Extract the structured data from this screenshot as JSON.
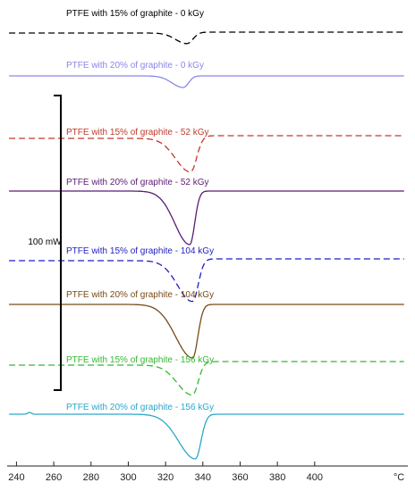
{
  "chart_data": {
    "type": "line",
    "xlabel": "",
    "x_unit": "°C",
    "xlim": [
      235,
      450
    ],
    "xticks": [
      240,
      260,
      280,
      300,
      320,
      340,
      360,
      380,
      400
    ],
    "scale_bar_label": "100 mW",
    "curves_note": "stacked DSC heat-flow curves, vertically offset",
    "series": [
      {
        "name": "PTFE with 15% of graphite - 0 kGy",
        "color": "#000000",
        "dashed": true,
        "baseline_left": 0.0,
        "baseline_right": -1.0,
        "peak_x": 331.5,
        "peak_depth": 12,
        "peak_width": 3.2,
        "onset_width": 6,
        "wiggle": 0
      },
      {
        "name": "PTFE with 20% of graphite - 0 kGy",
        "color": "#8b86e8",
        "dashed": false,
        "baseline_left": 0.0,
        "baseline_right": 0.0,
        "peak_x": 329.5,
        "peak_depth": 13,
        "peak_width": 2.8,
        "onset_width": 6,
        "wiggle": 0
      },
      {
        "name": "PTFE with 15% of graphite - 52 kGy",
        "color": "#c0392b",
        "dashed": true,
        "baseline_left": 0.0,
        "baseline_right": -3.0,
        "peak_x": 333.5,
        "peak_depth": 38,
        "peak_width": 3.2,
        "onset_width": 8,
        "wiggle": 0
      },
      {
        "name": "PTFE with 20% of graphite - 52 kGy",
        "color": "#5b1a73",
        "dashed": false,
        "baseline_left": 0.0,
        "baseline_right": 0.0,
        "peak_x": 333.0,
        "peak_depth": 60,
        "peak_width": 2.6,
        "onset_width": 8,
        "wiggle": 0
      },
      {
        "name": "PTFE with 15% of graphite - 104 kGy",
        "color": "#1f1fbf",
        "dashed": true,
        "baseline_left": 0.0,
        "baseline_right": -2.0,
        "peak_x": 334.5,
        "peak_depth": 46,
        "peak_width": 3.0,
        "onset_width": 8,
        "wiggle": 0
      },
      {
        "name": "PTFE with 20% of graphite - 104 kGy",
        "color": "#7a4a17",
        "dashed": false,
        "baseline_left": 0.0,
        "baseline_right": 0.0,
        "peak_x": 334.5,
        "peak_depth": 60,
        "peak_width": 2.8,
        "onset_width": 9,
        "wiggle": 0
      },
      {
        "name": "PTFE with 15% of graphite - 156 kGy",
        "color": "#33b833",
        "dashed": true,
        "baseline_left": 0.0,
        "baseline_right": -4.0,
        "peak_x": 334.5,
        "peak_depth": 34,
        "peak_width": 3.0,
        "onset_width": 8,
        "wiggle": 0
      },
      {
        "name": "PTFE with 20% of graphite - 156 kGy",
        "color": "#2aa7c9",
        "dashed": false,
        "baseline_left": 0.0,
        "baseline_right": 0.0,
        "peak_x": 336.0,
        "peak_depth": 50,
        "peak_width": 3.0,
        "onset_width": 9,
        "wiggle": 1
      }
    ]
  }
}
